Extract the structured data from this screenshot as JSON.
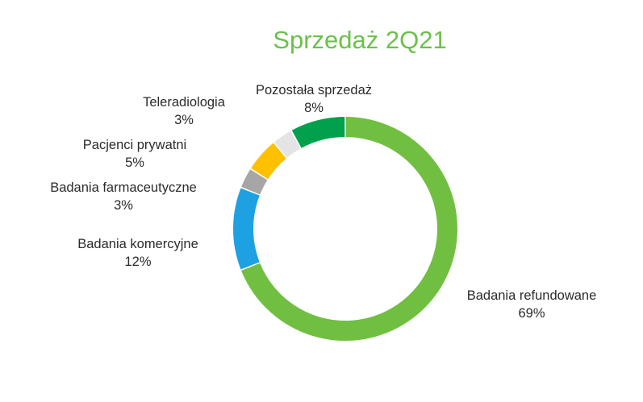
{
  "chart_data": {
    "type": "pie",
    "style": "donut",
    "title": "Sprzedaż 2Q21",
    "title_color": "#6cc04a",
    "slices": [
      {
        "label": "Badania refundowane",
        "value": 69,
        "value_label": "69%",
        "color": "#70bf41"
      },
      {
        "label": "Badania komercyjne",
        "value": 12,
        "value_label": "12%",
        "color": "#1da1e2"
      },
      {
        "label": "Badania farmaceutyczne",
        "value": 3,
        "value_label": "3%",
        "color": "#a6a6a6"
      },
      {
        "label": "Pacjenci prywatni",
        "value": 5,
        "value_label": "5%",
        "color": "#ffc000"
      },
      {
        "label": "Teleradiologia",
        "value": 3,
        "value_label": "3%",
        "color": "#e4e4e4"
      },
      {
        "label": "Pozostała sprzedaż",
        "value": 8,
        "value_label": "8%",
        "color": "#00a04d"
      }
    ],
    "legend": "none"
  }
}
